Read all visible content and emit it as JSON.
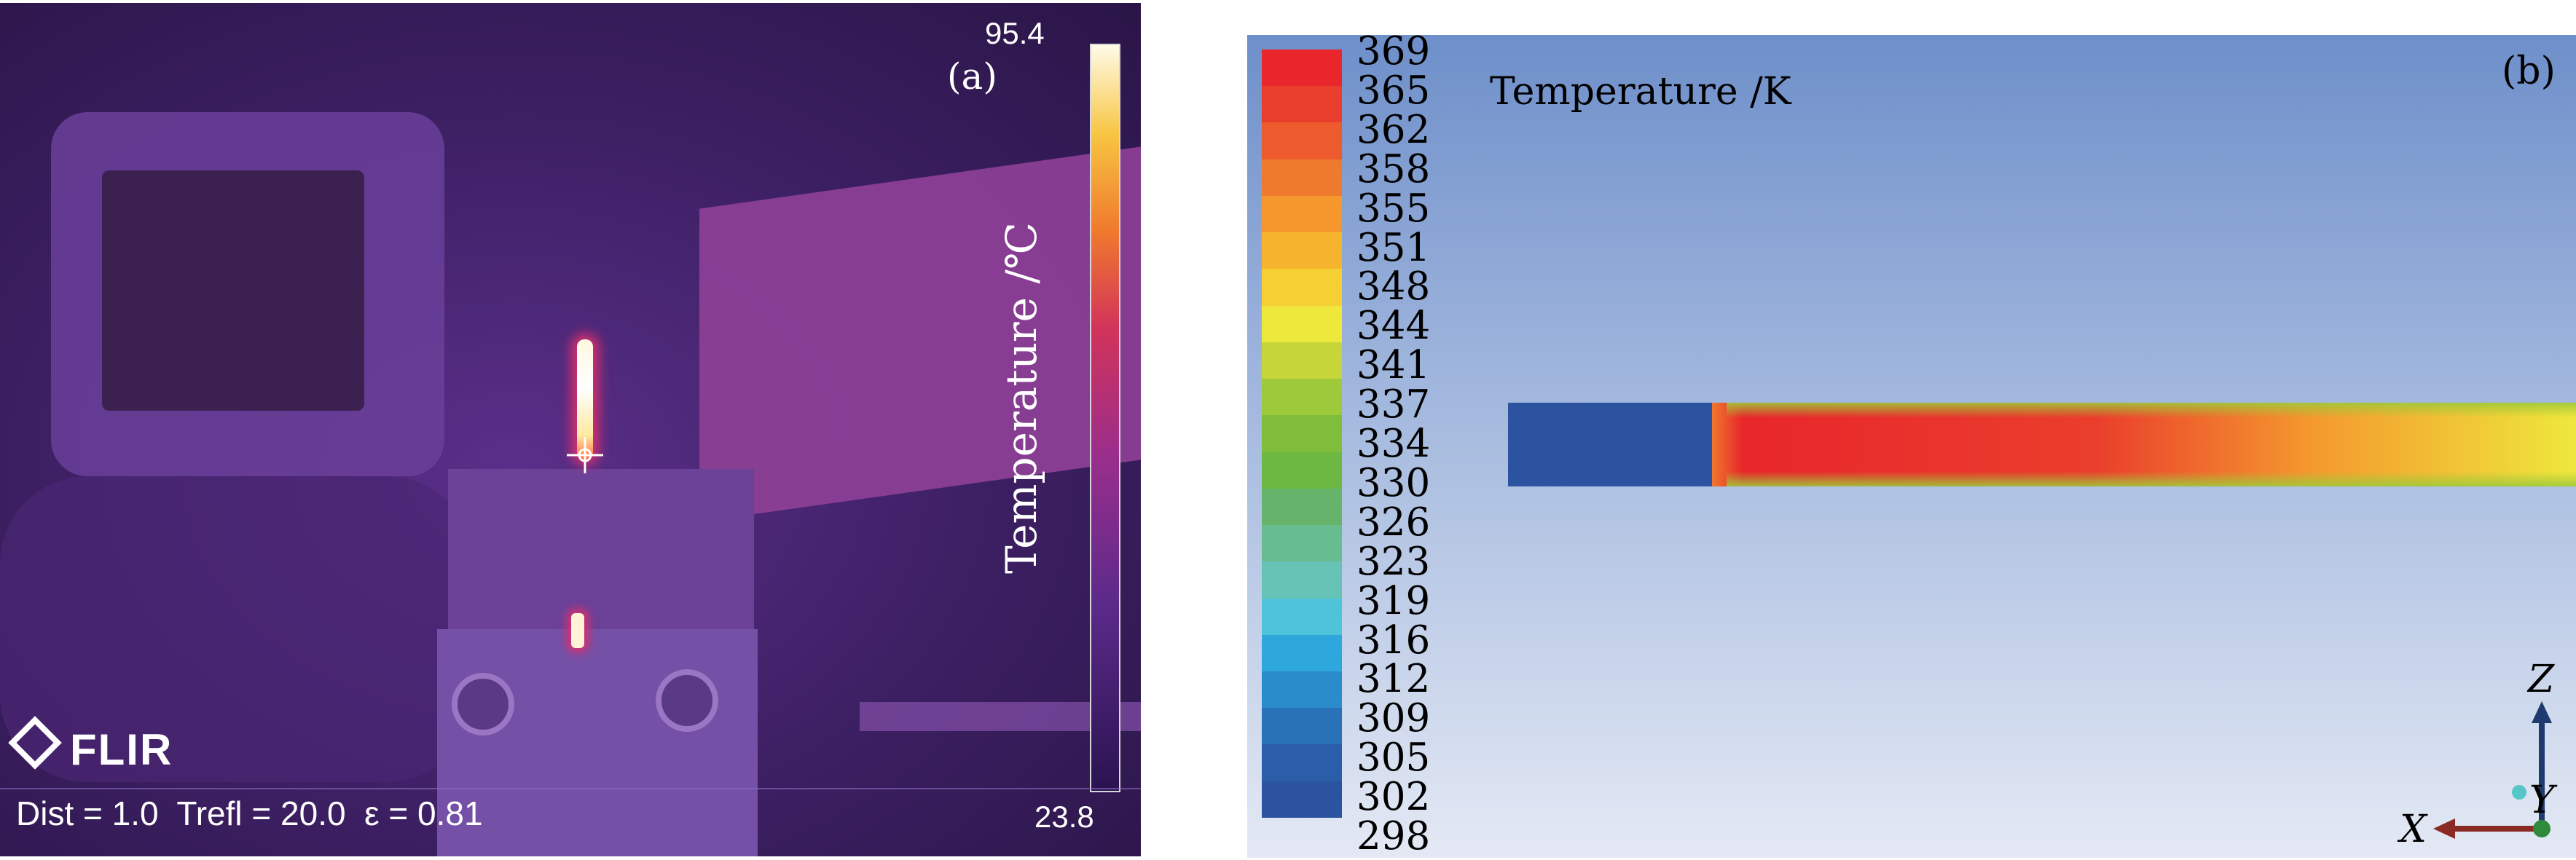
{
  "panel_a": {
    "label": "(a)",
    "scale_max": "95.4",
    "scale_min": "23.8",
    "scale_title": "Temperature /℃",
    "logo_text": "FLIR",
    "camera_params": "Dist = 1.0  Trefl = 20.0  ε = 0.81",
    "icons": [
      "flir-logo-icon",
      "crosshair-icon"
    ]
  },
  "panel_b": {
    "label": "(b)",
    "colorbar_title": "Temperature /K",
    "colorbar_ticks": [
      "369",
      "365",
      "362",
      "358",
      "355",
      "351",
      "348",
      "344",
      "341",
      "337",
      "334",
      "330",
      "326",
      "323",
      "319",
      "316",
      "312",
      "309",
      "305",
      "302",
      "298"
    ],
    "colorbar_colors": [
      "#e8262b",
      "#ea3e2c",
      "#ec5a2e",
      "#ef7a2e",
      "#f4982d",
      "#f6b42e",
      "#f4d034",
      "#eee83c",
      "#c6d63a",
      "#9ec93a",
      "#80bd3b",
      "#6db842",
      "#66b46c",
      "#67bd90",
      "#66c3b5",
      "#4ec3d9",
      "#2ea8dc",
      "#2a8ccb",
      "#2a72b8",
      "#2b5da8",
      "#2b53a0"
    ],
    "axis_labels": {
      "z": "Z",
      "y": "Y",
      "x": "X"
    },
    "icons": [
      "axis-triad-icon"
    ]
  }
}
